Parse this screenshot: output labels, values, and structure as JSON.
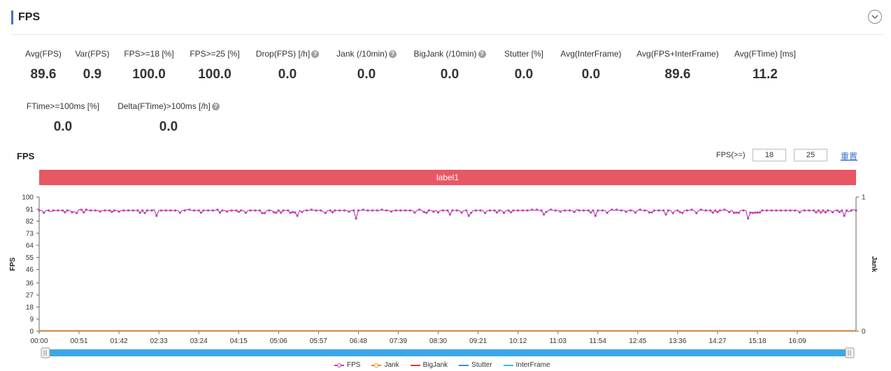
{
  "header": {
    "title": "FPS"
  },
  "metrics_row1": [
    {
      "label": "Avg(FPS)",
      "value": "89.6",
      "help": false
    },
    {
      "label": "Var(FPS)",
      "value": "0.9",
      "help": false
    },
    {
      "label": "FPS>=18 [%]",
      "value": "100.0",
      "help": false
    },
    {
      "label": "FPS>=25 [%]",
      "value": "100.0",
      "help": false
    },
    {
      "label": "Drop(FPS) [/h]",
      "value": "0.0",
      "help": true
    },
    {
      "label": "Jank (/10min)",
      "value": "0.0",
      "help": true
    },
    {
      "label": "BigJank (/10min)",
      "value": "0.0",
      "help": true
    },
    {
      "label": "Stutter [%]",
      "value": "0.0",
      "help": false
    },
    {
      "label": "Avg(InterFrame)",
      "value": "0.0",
      "help": false
    },
    {
      "label": "Avg(FPS+InterFrame)",
      "value": "89.6",
      "help": false
    },
    {
      "label": "Avg(FTime) [ms]",
      "value": "11.2",
      "help": false
    }
  ],
  "metrics_row2": [
    {
      "label": "FTime>=100ms [%]",
      "value": "0.0",
      "help": false
    },
    {
      "label": "Delta(FTime)>100ms [/h]",
      "value": "0.0",
      "help": true
    }
  ],
  "chart_header": {
    "title": "FPS",
    "threshold_label": "FPS(>=)",
    "threshold_low": "18",
    "threshold_high": "25",
    "reset_label": "重置"
  },
  "label_bar": {
    "text": "label1",
    "color": "#e85764"
  },
  "chart_data": {
    "type": "line",
    "yaxis_left": {
      "label": "FPS",
      "ticks": [
        0,
        9,
        18,
        27,
        36,
        46,
        55,
        64,
        73,
        82,
        91,
        100
      ],
      "range": [
        0,
        100
      ]
    },
    "yaxis_right": {
      "label": "Jank",
      "ticks": [
        0,
        1
      ],
      "range": [
        0,
        1
      ]
    },
    "x_ticks": [
      "00:00",
      "00:51",
      "01:42",
      "02:33",
      "03:24",
      "04:15",
      "05:06",
      "05:57",
      "06:48",
      "07:39",
      "08:30",
      "09:21",
      "10:12",
      "11:03",
      "11:54",
      "12:45",
      "13:36",
      "14:27",
      "15:18",
      "16:09"
    ],
    "x_range_seconds": [
      0,
      1044
    ],
    "fps_typical": 90,
    "fps_dips": [
      {
        "t": 46,
        "v": 89
      },
      {
        "t": 150,
        "v": 86
      },
      {
        "t": 330,
        "v": 86
      },
      {
        "t": 405,
        "v": 84
      },
      {
        "t": 525,
        "v": 87
      },
      {
        "t": 550,
        "v": 86
      },
      {
        "t": 645,
        "v": 87
      },
      {
        "t": 710,
        "v": 86
      },
      {
        "t": 800,
        "v": 87
      },
      {
        "t": 905,
        "v": 84
      },
      {
        "t": 1030,
        "v": 86
      }
    ],
    "series": [
      {
        "name": "FPS",
        "color": "#c040b8",
        "avg": 89.6
      },
      {
        "name": "Jank",
        "color": "#f08a2a",
        "value": 0
      },
      {
        "name": "BigJank",
        "color": "#e03a3a",
        "value": 0
      },
      {
        "name": "Stutter",
        "color": "#3b8ddc",
        "value": 0
      },
      {
        "name": "InterFrame",
        "color": "#30c0e0",
        "value": 0
      }
    ],
    "grid": false,
    "legend": "bottom"
  }
}
